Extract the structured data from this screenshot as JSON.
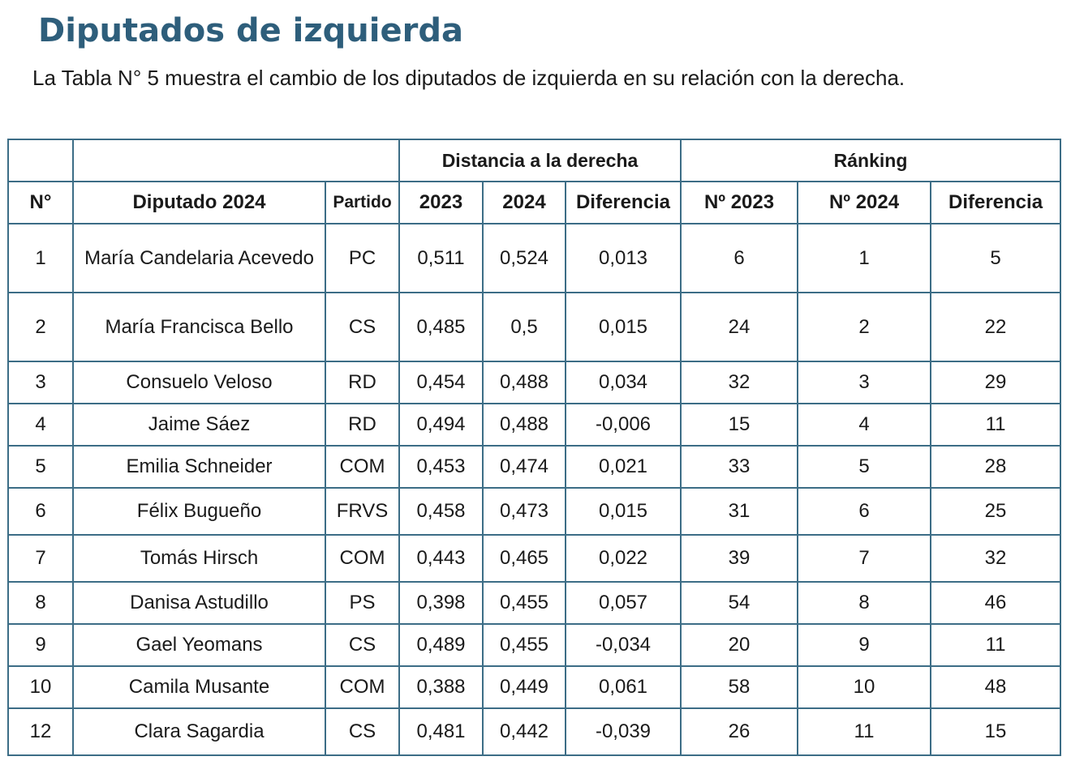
{
  "title": "Diputados de izquierda",
  "intro": "La Tabla N° 5 muestra el cambio de los diputados de izquierda en su relación con la derecha.",
  "table": {
    "group_headers": {
      "distance": "Distancia a la derecha",
      "ranking": "Ránking"
    },
    "columns": {
      "num": "N°",
      "deputy": "Diputado 2024",
      "party": "Partido",
      "d2023": "2023",
      "d2024": "2024",
      "ddiff": "Diferencia",
      "r2023": "Nº 2023",
      "r2024": "Nº 2024",
      "rdiff": "Diferencia"
    },
    "rows": [
      {
        "num": "1",
        "deputy": "María Candelaria Acevedo",
        "party": "PC",
        "d2023": "0,511",
        "d2024": "0,524",
        "ddiff": "0,013",
        "r2023": "6",
        "r2024": "1",
        "rdiff": "5"
      },
      {
        "num": "2",
        "deputy": "María Francisca Bello",
        "party": "CS",
        "d2023": "0,485",
        "d2024": "0,5",
        "ddiff": "0,015",
        "r2023": "24",
        "r2024": "2",
        "rdiff": "22"
      },
      {
        "num": "3",
        "deputy": "Consuelo Veloso",
        "party": "RD",
        "d2023": "0,454",
        "d2024": "0,488",
        "ddiff": "0,034",
        "r2023": "32",
        "r2024": "3",
        "rdiff": "29"
      },
      {
        "num": "4",
        "deputy": "Jaime Sáez",
        "party": "RD",
        "d2023": "0,494",
        "d2024": "0,488",
        "ddiff": "-0,006",
        "r2023": "15",
        "r2024": "4",
        "rdiff": "11"
      },
      {
        "num": "5",
        "deputy": "Emilia Schneider",
        "party": "COM",
        "d2023": "0,453",
        "d2024": "0,474",
        "ddiff": "0,021",
        "r2023": "33",
        "r2024": "5",
        "rdiff": "28"
      },
      {
        "num": "6",
        "deputy": "Félix Bugueño",
        "party": "FRVS",
        "d2023": "0,458",
        "d2024": "0,473",
        "ddiff": "0,015",
        "r2023": "31",
        "r2024": "6",
        "rdiff": "25"
      },
      {
        "num": "7",
        "deputy": "Tomás Hirsch",
        "party": "COM",
        "d2023": "0,443",
        "d2024": "0,465",
        "ddiff": "0,022",
        "r2023": "39",
        "r2024": "7",
        "rdiff": "32"
      },
      {
        "num": "8",
        "deputy": "Danisa Astudillo",
        "party": "PS",
        "d2023": "0,398",
        "d2024": "0,455",
        "ddiff": "0,057",
        "r2023": "54",
        "r2024": "8",
        "rdiff": "46"
      },
      {
        "num": "9",
        "deputy": "Gael Yeomans",
        "party": "CS",
        "d2023": "0,489",
        "d2024": "0,455",
        "ddiff": "-0,034",
        "r2023": "20",
        "r2024": "9",
        "rdiff": "11"
      },
      {
        "num": "10",
        "deputy": "Camila Musante",
        "party": "COM",
        "d2023": "0,388",
        "d2024": "0,449",
        "ddiff": "0,061",
        "r2023": "58",
        "r2024": "10",
        "rdiff": "48"
      },
      {
        "num": "12",
        "deputy": "Clara Sagardia",
        "party": "CS",
        "d2023": "0,481",
        "d2024": "0,442",
        "ddiff": "-0,039",
        "r2023": "26",
        "r2024": "11",
        "rdiff": "15"
      }
    ]
  }
}
